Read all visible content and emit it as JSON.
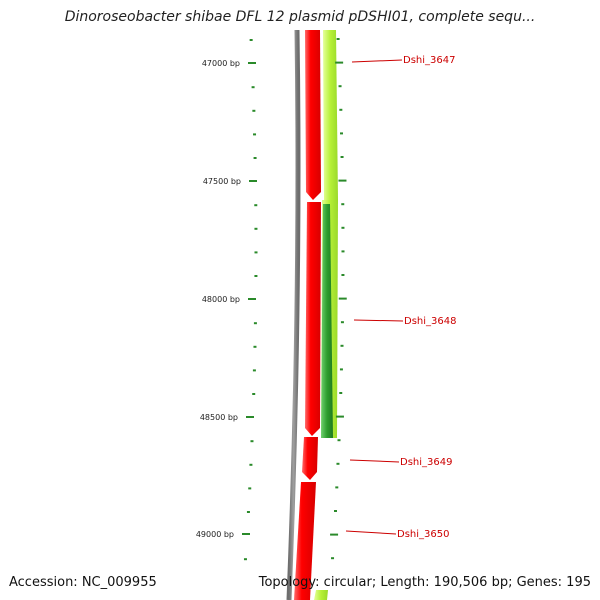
{
  "title": "Dinoroseobacter shibae DFL 12 plasmid pDSHI01, complete sequ...",
  "ruler": {
    "labels": [
      "47000 bp",
      "47500 bp",
      "48000 bp",
      "48500 bp",
      "49000 bp"
    ]
  },
  "genes": [
    {
      "label": "Dshi_3647"
    },
    {
      "label": "Dshi_3648"
    },
    {
      "label": "Dshi_3649"
    },
    {
      "label": "Dshi_3650"
    }
  ],
  "footer": {
    "accession": "Accession: NC_009955",
    "summary": "Topology: circular; Length: 190,506 bp; Genes: 195"
  },
  "colors": {
    "tick": "#2a8a2a",
    "backbone": "#8a8a8a",
    "forward_strand": "#ff2020",
    "reverse_strand": "#b8f040",
    "reverse_strand_dark": "#2f9a2f",
    "label": "#cc0000"
  }
}
